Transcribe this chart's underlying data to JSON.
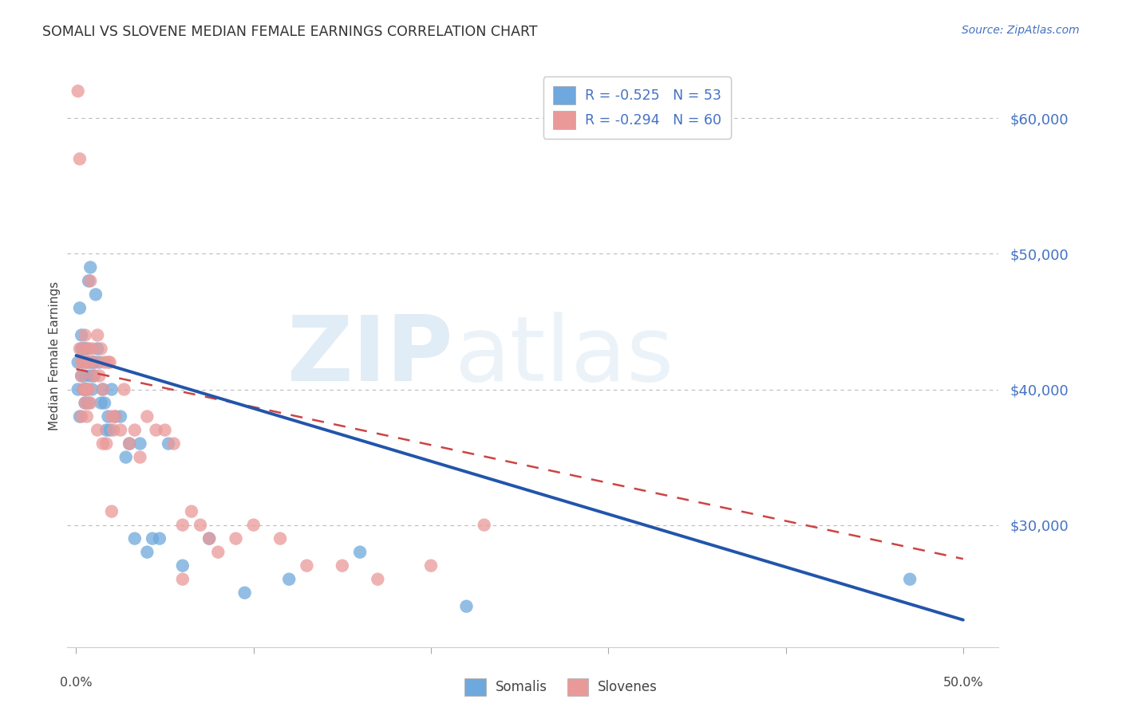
{
  "title": "SOMALI VS SLOVENE MEDIAN FEMALE EARNINGS CORRELATION CHART",
  "source": "Source: ZipAtlas.com",
  "ylabel": "Median Female Earnings",
  "yticks": [
    30000,
    40000,
    50000,
    60000
  ],
  "ytick_labels": [
    "$30,000",
    "$40,000",
    "$50,000",
    "$60,000"
  ],
  "ymin": 21000,
  "ymax": 64000,
  "xmin": -0.005,
  "xmax": 0.52,
  "somali_color": "#6fa8dc",
  "slovene_color": "#ea9999",
  "somali_line_color": "#2255aa",
  "slovene_line_color": "#cc4444",
  "legend_label_1": "R = -0.525   N = 53",
  "legend_label_2": "R = -0.294   N = 60",
  "legend_label_somali": "Somalis",
  "legend_label_slovene": "Slovenes",
  "somali_points_x": [
    0.001,
    0.001,
    0.002,
    0.002,
    0.003,
    0.003,
    0.003,
    0.004,
    0.004,
    0.004,
    0.005,
    0.005,
    0.005,
    0.005,
    0.006,
    0.006,
    0.006,
    0.007,
    0.007,
    0.007,
    0.008,
    0.008,
    0.009,
    0.009,
    0.01,
    0.01,
    0.011,
    0.012,
    0.013,
    0.014,
    0.015,
    0.016,
    0.017,
    0.018,
    0.019,
    0.02,
    0.022,
    0.025,
    0.028,
    0.03,
    0.033,
    0.036,
    0.04,
    0.043,
    0.047,
    0.052,
    0.06,
    0.075,
    0.095,
    0.12,
    0.16,
    0.22,
    0.47
  ],
  "somali_points_y": [
    42000,
    40000,
    46000,
    38000,
    44000,
    43000,
    41000,
    42000,
    40000,
    43000,
    41000,
    43000,
    40000,
    39000,
    43000,
    42000,
    40000,
    48000,
    42000,
    39000,
    49000,
    41000,
    42000,
    40000,
    42000,
    41000,
    47000,
    43000,
    42000,
    39000,
    40000,
    39000,
    37000,
    38000,
    37000,
    40000,
    38000,
    38000,
    35000,
    36000,
    29000,
    36000,
    28000,
    29000,
    29000,
    36000,
    27000,
    29000,
    25000,
    26000,
    28000,
    24000,
    26000
  ],
  "slovene_points_x": [
    0.001,
    0.002,
    0.002,
    0.003,
    0.003,
    0.004,
    0.004,
    0.005,
    0.005,
    0.006,
    0.006,
    0.007,
    0.008,
    0.008,
    0.009,
    0.01,
    0.011,
    0.012,
    0.013,
    0.014,
    0.015,
    0.016,
    0.017,
    0.018,
    0.019,
    0.02,
    0.021,
    0.022,
    0.025,
    0.027,
    0.03,
    0.033,
    0.036,
    0.04,
    0.045,
    0.05,
    0.055,
    0.06,
    0.065,
    0.07,
    0.075,
    0.08,
    0.09,
    0.1,
    0.115,
    0.13,
    0.15,
    0.17,
    0.2,
    0.23,
    0.003,
    0.004,
    0.005,
    0.006,
    0.007,
    0.008,
    0.012,
    0.015,
    0.02,
    0.06
  ],
  "slovene_points_y": [
    62000,
    57000,
    43000,
    42000,
    38000,
    42000,
    43000,
    40000,
    44000,
    42000,
    40000,
    43000,
    48000,
    42000,
    43000,
    41000,
    42000,
    44000,
    41000,
    43000,
    40000,
    42000,
    36000,
    42000,
    42000,
    38000,
    37000,
    38000,
    37000,
    40000,
    36000,
    37000,
    35000,
    38000,
    37000,
    37000,
    36000,
    30000,
    31000,
    30000,
    29000,
    28000,
    29000,
    30000,
    29000,
    27000,
    27000,
    26000,
    27000,
    30000,
    41000,
    40000,
    39000,
    38000,
    40000,
    39000,
    37000,
    36000,
    31000,
    26000
  ],
  "somali_line_x0": 0.0,
  "somali_line_y0": 42500,
  "somali_line_x1": 0.5,
  "somali_line_y1": 23000,
  "slovene_line_x0": 0.0,
  "slovene_line_y0": 41500,
  "slovene_line_x1": 0.5,
  "slovene_line_y1": 27500
}
